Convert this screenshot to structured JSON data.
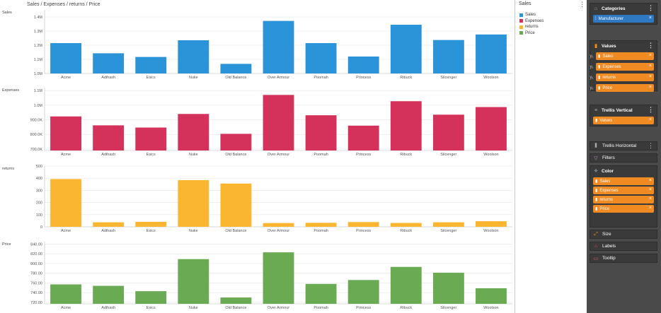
{
  "title": "Sales / Expenses / returns / Price",
  "legend": {
    "title": "Sales",
    "items": [
      {
        "label": "Sales",
        "color": "#2b93d8"
      },
      {
        "label": "Expenses",
        "color": "#d4325a"
      },
      {
        "label": "returns",
        "color": "#fbb631"
      },
      {
        "label": "Price",
        "color": "#6aaa52"
      }
    ]
  },
  "sidebar": {
    "categories": {
      "label": "Categories",
      "field": "Manufacturer"
    },
    "values": {
      "label": "Values",
      "fields": [
        "Sales",
        "Expenses",
        "returns",
        "Price"
      ]
    },
    "trellis_vertical": {
      "label": "Trellis Vertical",
      "field": "Values"
    },
    "trellis_horizontal": {
      "label": "Trellis Horizontal"
    },
    "filters": {
      "label": "Filters"
    },
    "color": {
      "label": "Color",
      "fields": [
        "Sales",
        "Expenses",
        "returns",
        "Price"
      ]
    },
    "size": {
      "label": "Size"
    },
    "labels": {
      "label": "Labels"
    },
    "tooltip": {
      "label": "Tooltip"
    }
  },
  "chart_data": [
    {
      "type": "bar",
      "ylabel": "Sales",
      "color": "#2b93d8",
      "categories": [
        "Acme",
        "Adihash",
        "Esics",
        "Nuke",
        "Old Balance",
        "Over Armour",
        "Poomah",
        "Princess",
        "Ribuck",
        "Silcenger",
        "Woolson"
      ],
      "values": [
        1215000,
        1143000,
        1117000,
        1235000,
        1068000,
        1372000,
        1215000,
        1120000,
        1345000,
        1237000,
        1276000
      ],
      "ylim": [
        1000000,
        1450000
      ],
      "yticks": [
        {
          "v": 1000000,
          "t": "1.0M"
        },
        {
          "v": 1100000,
          "t": "1.1M"
        },
        {
          "v": 1200000,
          "t": "1.2M"
        },
        {
          "v": 1300000,
          "t": "1.3M"
        },
        {
          "v": 1400000,
          "t": "1.4M"
        }
      ]
    },
    {
      "type": "bar",
      "ylabel": "Expenses",
      "color": "#d4325a",
      "categories": [
        "Acme",
        "Adihash",
        "Esics",
        "Nuke",
        "Old Balance",
        "Over Armour",
        "Poomah",
        "Princess",
        "Ribuck",
        "Silcenger",
        "Woolson"
      ],
      "values": [
        923000,
        862000,
        847000,
        940000,
        804000,
        1070000,
        931000,
        860000,
        1027000,
        935000,
        987000
      ],
      "ylim": [
        690000,
        1120000
      ],
      "yticks": [
        {
          "v": 700000,
          "t": "700.0K"
        },
        {
          "v": 800000,
          "t": "800.0K"
        },
        {
          "v": 900000,
          "t": "900.0K"
        },
        {
          "v": 1000000,
          "t": "1.0M"
        },
        {
          "v": 1100000,
          "t": "1.1M"
        }
      ]
    },
    {
      "type": "bar",
      "ylabel": "returns",
      "color": "#fbb631",
      "categories": [
        "Acme",
        "Adihash",
        "Esics",
        "Nuke",
        "Old Balance",
        "Over Armour",
        "Poomah",
        "Princess",
        "Ribuck",
        "Silcenger",
        "Woolson"
      ],
      "values": [
        393,
        37,
        41,
        384,
        356,
        31,
        33,
        39,
        32,
        37,
        46
      ],
      "ylim": [
        0,
        500
      ],
      "yticks": [
        {
          "v": 0,
          "t": "0"
        },
        {
          "v": 100,
          "t": "100"
        },
        {
          "v": 200,
          "t": "200"
        },
        {
          "v": 300,
          "t": "300"
        },
        {
          "v": 400,
          "t": "400"
        },
        {
          "v": 500,
          "t": "500"
        }
      ]
    },
    {
      "type": "bar",
      "ylabel": "Price",
      "color": "#6aaa52",
      "categories": [
        "Acme",
        "Adihash",
        "Esics",
        "Nuke",
        "Old Balance",
        "Over Armour",
        "Poomah",
        "Princess",
        "Ribuck",
        "Silcenger",
        "Woolson"
      ],
      "values": [
        757,
        754,
        743,
        809,
        730,
        823,
        758,
        766,
        793,
        781,
        749
      ],
      "ylim": [
        717,
        845
      ],
      "yticks": [
        {
          "v": 720,
          "t": "720.00"
        },
        {
          "v": 740,
          "t": "740.00"
        },
        {
          "v": 760,
          "t": "760.00"
        },
        {
          "v": 780,
          "t": "780.00"
        },
        {
          "v": 800,
          "t": "800.00"
        },
        {
          "v": 820,
          "t": "820.00"
        },
        {
          "v": 840,
          "t": "840.00"
        }
      ]
    }
  ]
}
